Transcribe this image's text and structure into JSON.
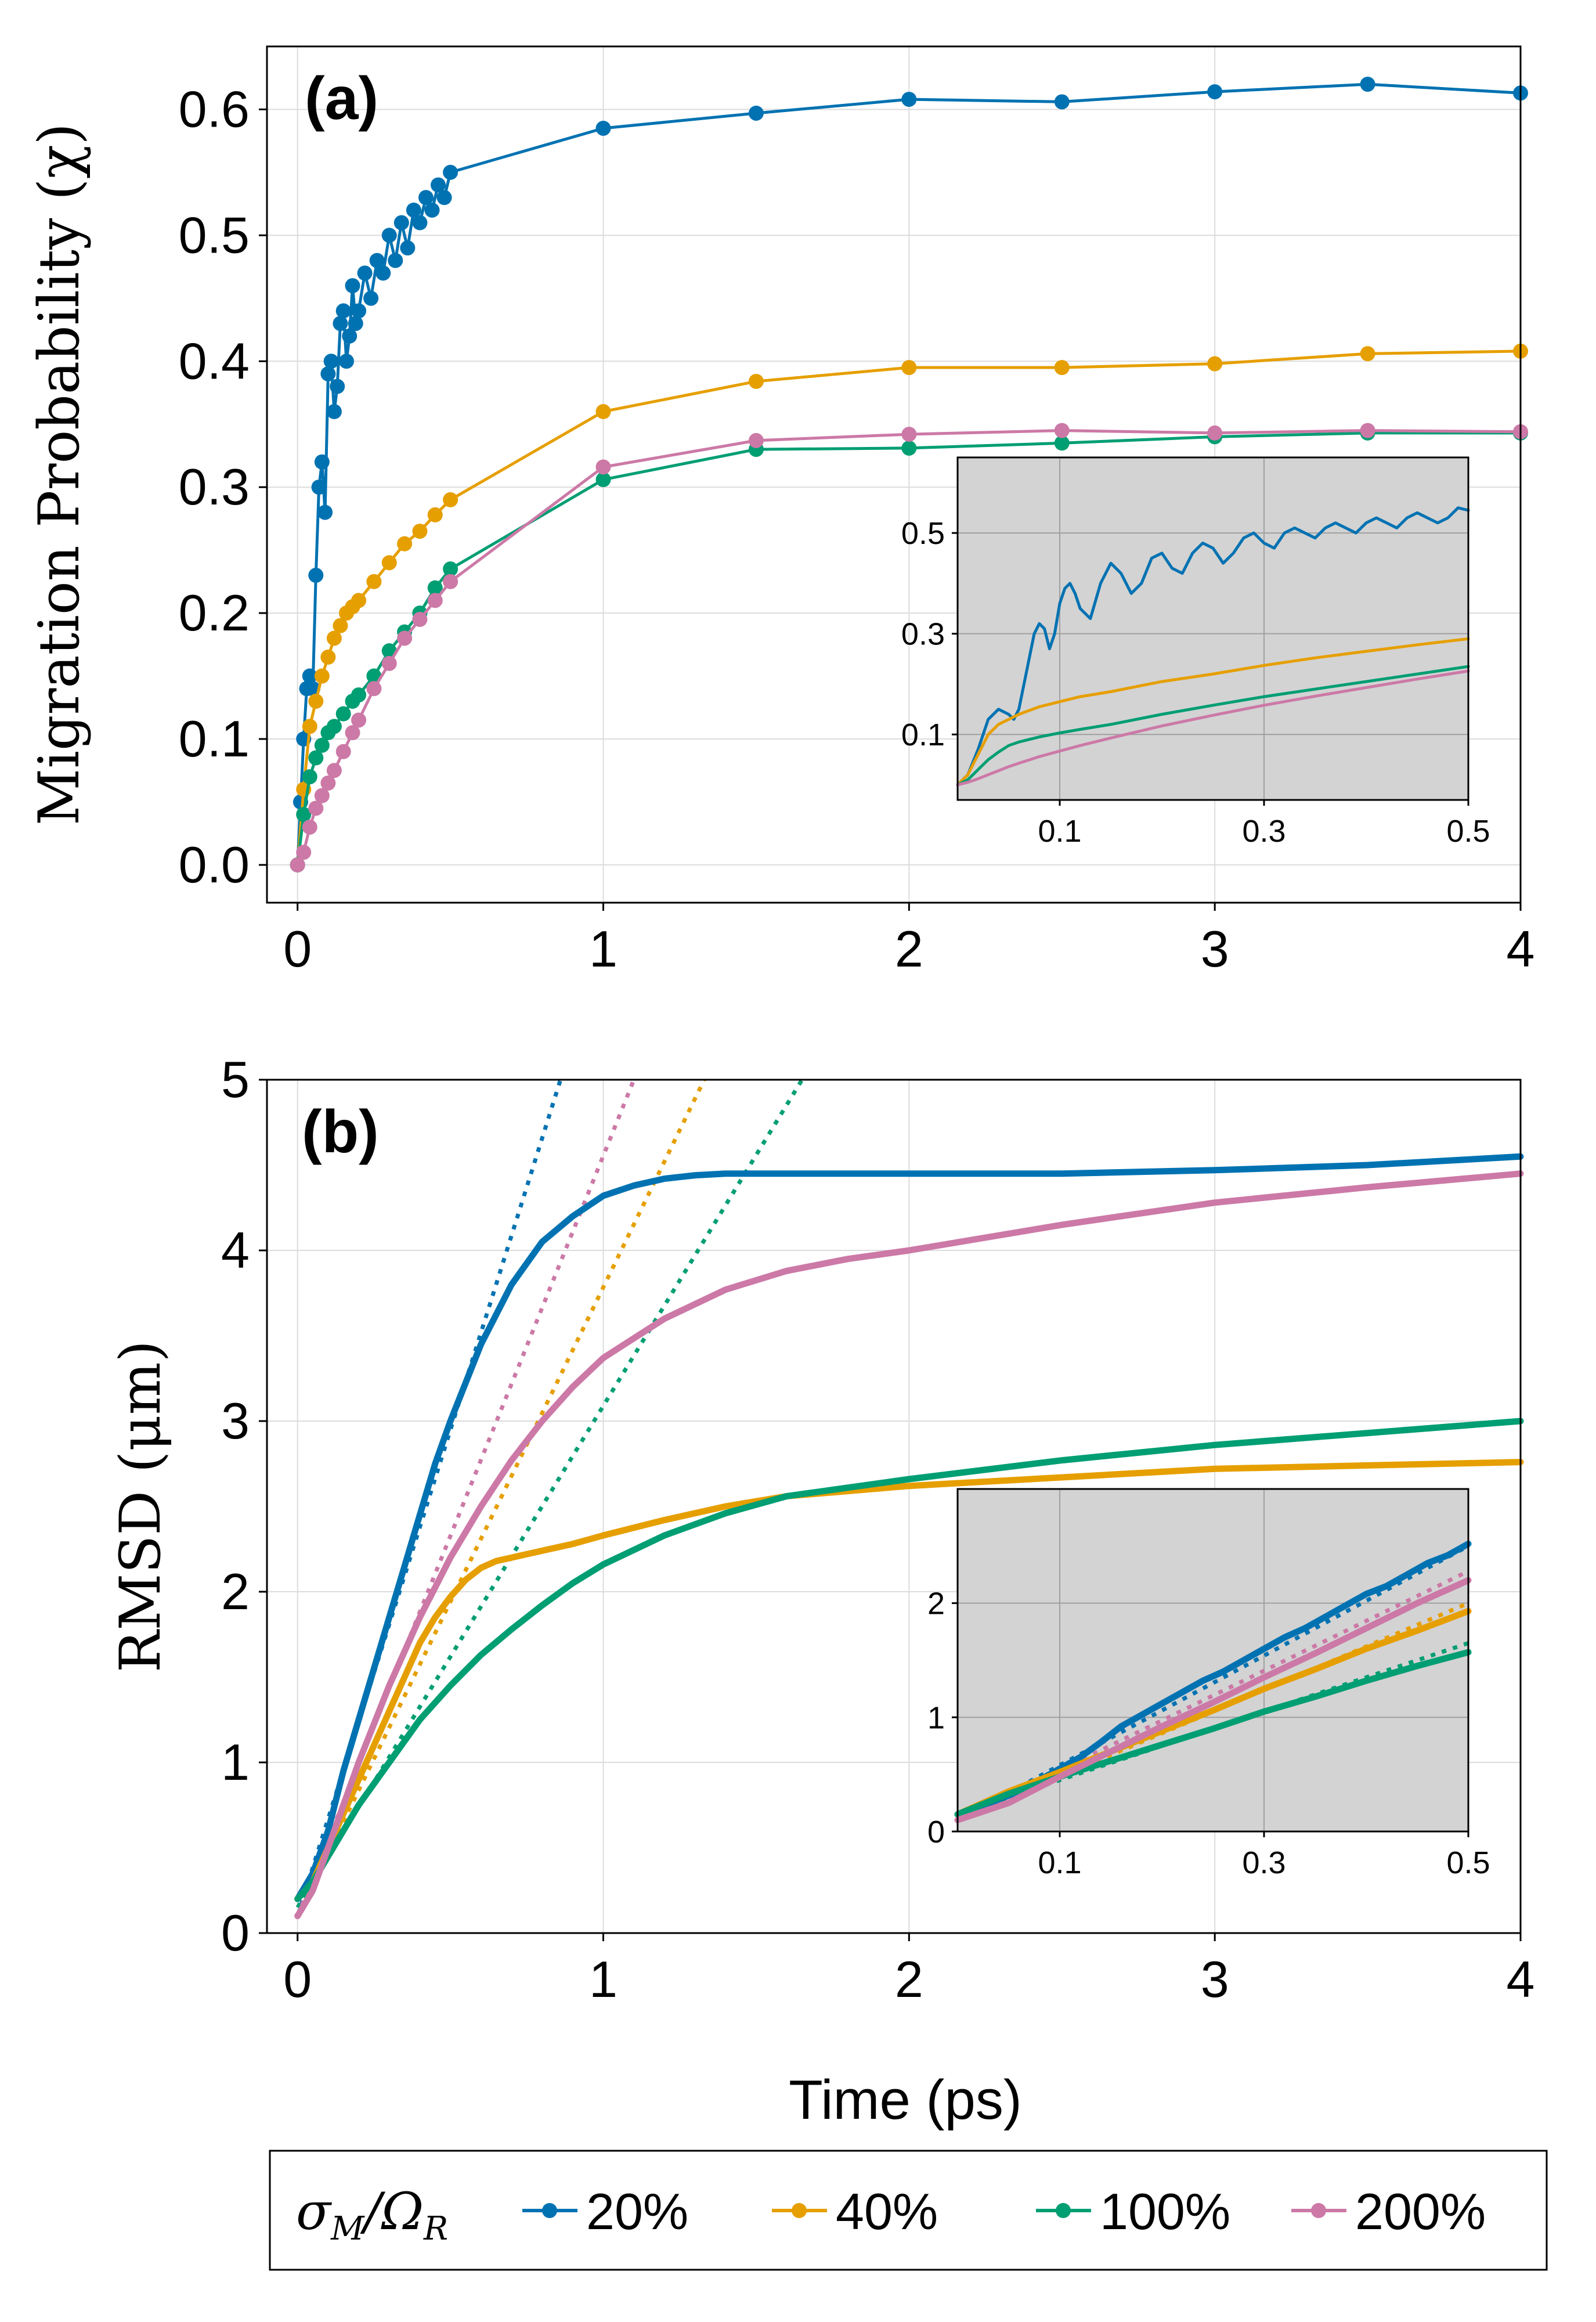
{
  "colors": {
    "s20": "#0072b2",
    "s40": "#e69f00",
    "s100": "#009e73",
    "s200": "#cc79a7",
    "inset_bg": "#d3d3d3",
    "grid": "#dcdcdc"
  },
  "legend": {
    "title": "σM/ΩR",
    "title_main": "σ",
    "title_sub1": "M",
    "title_mid": "/Ω",
    "title_sub2": "R",
    "items": [
      "20%",
      "40%",
      "100%",
      "200%"
    ]
  },
  "chart_data": [
    {
      "type": "line",
      "panel_label": "(a)",
      "ylabel": "Migration Probability (χ)",
      "xlabel": "",
      "xlim": [
        -0.1,
        4
      ],
      "ylim": [
        -0.03,
        0.65
      ],
      "xticks": [
        "0",
        "1",
        "2",
        "3",
        "4"
      ],
      "yticks": [
        "0.0",
        "0.1",
        "0.2",
        "0.3",
        "0.4",
        "0.5",
        "0.6"
      ],
      "grid": true,
      "markers": true,
      "series": [
        {
          "name": "20%",
          "x": [
            0,
            0.01,
            0.02,
            0.03,
            0.04,
            0.05,
            0.06,
            0.07,
            0.08,
            0.09,
            0.1,
            0.11,
            0.12,
            0.13,
            0.14,
            0.15,
            0.16,
            0.17,
            0.18,
            0.19,
            0.2,
            0.22,
            0.24,
            0.26,
            0.28,
            0.3,
            0.32,
            0.34,
            0.36,
            0.38,
            0.4,
            0.42,
            0.44,
            0.46,
            0.48,
            0.5,
            1,
            1.5,
            2,
            2.5,
            3,
            3.5,
            4
          ],
          "y": [
            0,
            0.05,
            0.1,
            0.14,
            0.15,
            0.14,
            0.23,
            0.3,
            0.32,
            0.28,
            0.39,
            0.4,
            0.36,
            0.38,
            0.43,
            0.44,
            0.4,
            0.42,
            0.46,
            0.43,
            0.44,
            0.47,
            0.45,
            0.48,
            0.47,
            0.5,
            0.48,
            0.51,
            0.49,
            0.52,
            0.51,
            0.53,
            0.52,
            0.54,
            0.53,
            0.55,
            0.585,
            0.597,
            0.608,
            0.606,
            0.614,
            0.62,
            0.613
          ]
        },
        {
          "name": "40%",
          "x": [
            0,
            0.02,
            0.04,
            0.06,
            0.08,
            0.1,
            0.12,
            0.14,
            0.16,
            0.18,
            0.2,
            0.25,
            0.3,
            0.35,
            0.4,
            0.45,
            0.5,
            1,
            1.5,
            2,
            2.5,
            3,
            3.5,
            4
          ],
          "y": [
            0,
            0.06,
            0.11,
            0.13,
            0.15,
            0.165,
            0.18,
            0.19,
            0.2,
            0.205,
            0.21,
            0.225,
            0.24,
            0.255,
            0.265,
            0.278,
            0.29,
            0.36,
            0.384,
            0.395,
            0.395,
            0.398,
            0.406,
            0.408
          ]
        },
        {
          "name": "100%",
          "x": [
            0,
            0.02,
            0.04,
            0.06,
            0.08,
            0.1,
            0.12,
            0.15,
            0.18,
            0.2,
            0.25,
            0.3,
            0.35,
            0.4,
            0.45,
            0.5,
            1,
            1.5,
            2,
            2.5,
            3,
            3.5,
            4
          ],
          "y": [
            0,
            0.04,
            0.07,
            0.085,
            0.095,
            0.105,
            0.11,
            0.12,
            0.13,
            0.135,
            0.15,
            0.17,
            0.185,
            0.2,
            0.22,
            0.235,
            0.306,
            0.33,
            0.331,
            0.335,
            0.34,
            0.343,
            0.343
          ]
        },
        {
          "name": "200%",
          "x": [
            0,
            0.02,
            0.04,
            0.06,
            0.08,
            0.1,
            0.12,
            0.15,
            0.18,
            0.2,
            0.25,
            0.3,
            0.35,
            0.4,
            0.45,
            0.5,
            1,
            1.5,
            2,
            2.5,
            3,
            3.5,
            4
          ],
          "y": [
            0,
            0.01,
            0.03,
            0.045,
            0.055,
            0.065,
            0.075,
            0.09,
            0.105,
            0.115,
            0.14,
            0.16,
            0.18,
            0.195,
            0.21,
            0.225,
            0.316,
            0.337,
            0.342,
            0.345,
            0.343,
            0.345,
            0.344
          ]
        }
      ],
      "inset": {
        "xlim": [
          0,
          0.5
        ],
        "ylim": [
          -0.03,
          0.65
        ],
        "xticks": [
          "0.1",
          "0.3",
          "0.5"
        ],
        "yticks": [
          "0.1",
          "0.3",
          "0.5"
        ],
        "markers": false,
        "series": [
          {
            "name": "20%",
            "x": [
              0,
              0.01,
              0.02,
              0.03,
              0.04,
              0.05,
              0.055,
              0.06,
              0.065,
              0.07,
              0.075,
              0.08,
              0.085,
              0.09,
              0.095,
              0.1,
              0.105,
              0.11,
              0.115,
              0.12,
              0.13,
              0.14,
              0.15,
              0.16,
              0.17,
              0.18,
              0.19,
              0.2,
              0.21,
              0.22,
              0.23,
              0.24,
              0.25,
              0.26,
              0.27,
              0.28,
              0.29,
              0.3,
              0.31,
              0.32,
              0.33,
              0.34,
              0.35,
              0.36,
              0.37,
              0.38,
              0.39,
              0.4,
              0.41,
              0.42,
              0.43,
              0.44,
              0.45,
              0.46,
              0.47,
              0.48,
              0.49,
              0.5
            ],
            "y": [
              0,
              0.02,
              0.07,
              0.13,
              0.15,
              0.14,
              0.13,
              0.15,
              0.2,
              0.25,
              0.3,
              0.32,
              0.31,
              0.27,
              0.3,
              0.36,
              0.39,
              0.4,
              0.38,
              0.35,
              0.33,
              0.4,
              0.44,
              0.42,
              0.38,
              0.4,
              0.45,
              0.46,
              0.43,
              0.42,
              0.46,
              0.48,
              0.47,
              0.44,
              0.46,
              0.49,
              0.5,
              0.48,
              0.47,
              0.5,
              0.51,
              0.5,
              0.49,
              0.51,
              0.52,
              0.51,
              0.5,
              0.52,
              0.53,
              0.52,
              0.51,
              0.53,
              0.54,
              0.53,
              0.52,
              0.53,
              0.55,
              0.545
            ]
          },
          {
            "name": "40%",
            "x": [
              0,
              0.01,
              0.02,
              0.03,
              0.04,
              0.05,
              0.06,
              0.08,
              0.1,
              0.12,
              0.15,
              0.2,
              0.25,
              0.3,
              0.35,
              0.4,
              0.45,
              0.5
            ],
            "y": [
              0,
              0.02,
              0.06,
              0.1,
              0.12,
              0.13,
              0.14,
              0.155,
              0.165,
              0.175,
              0.185,
              0.205,
              0.22,
              0.237,
              0.252,
              0.265,
              0.278,
              0.29
            ]
          },
          {
            "name": "100%",
            "x": [
              0,
              0.01,
              0.02,
              0.03,
              0.04,
              0.05,
              0.06,
              0.08,
              0.1,
              0.12,
              0.15,
              0.2,
              0.25,
              0.3,
              0.35,
              0.4,
              0.45,
              0.5
            ],
            "y": [
              0,
              0.01,
              0.03,
              0.05,
              0.065,
              0.078,
              0.085,
              0.095,
              0.103,
              0.11,
              0.12,
              0.14,
              0.158,
              0.175,
              0.19,
              0.205,
              0.22,
              0.235
            ]
          },
          {
            "name": "200%",
            "x": [
              0,
              0.01,
              0.02,
              0.03,
              0.04,
              0.05,
              0.06,
              0.08,
              0.1,
              0.12,
              0.15,
              0.2,
              0.25,
              0.3,
              0.35,
              0.4,
              0.45,
              0.5
            ],
            "y": [
              0,
              0.005,
              0.012,
              0.02,
              0.028,
              0.036,
              0.043,
              0.056,
              0.067,
              0.078,
              0.093,
              0.117,
              0.138,
              0.158,
              0.176,
              0.193,
              0.21,
              0.226
            ]
          }
        ]
      }
    },
    {
      "type": "line",
      "panel_label": "(b)",
      "ylabel": "RMSD (μm)",
      "xlabel": "Time (ps)",
      "xlim": [
        -0.1,
        4
      ],
      "ylim": [
        0,
        5
      ],
      "xticks": [
        "0",
        "1",
        "2",
        "3",
        "4"
      ],
      "yticks": [
        "0",
        "1",
        "2",
        "3",
        "4",
        "5"
      ],
      "grid": true,
      "markers": false,
      "series": [
        {
          "name": "20%",
          "x": [
            0,
            0.05,
            0.1,
            0.15,
            0.2,
            0.25,
            0.3,
            0.35,
            0.4,
            0.45,
            0.5,
            0.6,
            0.7,
            0.8,
            0.9,
            1,
            1.1,
            1.2,
            1.3,
            1.4,
            1.5,
            1.75,
            2,
            2.5,
            3,
            3.5,
            4
          ],
          "y": [
            0.2,
            0.35,
            0.6,
            0.95,
            1.25,
            1.55,
            1.85,
            2.15,
            2.45,
            2.75,
            3.0,
            3.45,
            3.8,
            4.05,
            4.2,
            4.32,
            4.38,
            4.42,
            4.44,
            4.45,
            4.45,
            4.45,
            4.45,
            4.45,
            4.47,
            4.5,
            4.55
          ]
        },
        {
          "name": "40%",
          "x": [
            0,
            0.05,
            0.1,
            0.15,
            0.2,
            0.25,
            0.3,
            0.35,
            0.4,
            0.45,
            0.5,
            0.55,
            0.6,
            0.65,
            0.7,
            0.8,
            0.9,
            1,
            1.2,
            1.4,
            1.6,
            2,
            2.5,
            3,
            3.5,
            4
          ],
          "y": [
            0.2,
            0.3,
            0.5,
            0.7,
            0.9,
            1.1,
            1.3,
            1.5,
            1.7,
            1.85,
            1.97,
            2.07,
            2.14,
            2.18,
            2.2,
            2.24,
            2.28,
            2.33,
            2.42,
            2.5,
            2.56,
            2.62,
            2.67,
            2.72,
            2.74,
            2.76
          ]
        },
        {
          "name": "100%",
          "x": [
            0,
            0.05,
            0.1,
            0.15,
            0.2,
            0.3,
            0.4,
            0.5,
            0.6,
            0.7,
            0.8,
            0.9,
            1,
            1.2,
            1.4,
            1.6,
            1.8,
            2,
            2.5,
            3,
            3.5,
            4
          ],
          "y": [
            0.2,
            0.3,
            0.45,
            0.6,
            0.75,
            1.0,
            1.25,
            1.45,
            1.63,
            1.78,
            1.92,
            2.05,
            2.16,
            2.33,
            2.46,
            2.56,
            2.61,
            2.66,
            2.77,
            2.86,
            2.93,
            3.0
          ]
        },
        {
          "name": "200%",
          "x": [
            0,
            0.05,
            0.1,
            0.15,
            0.2,
            0.3,
            0.4,
            0.5,
            0.6,
            0.7,
            0.8,
            0.9,
            1,
            1.2,
            1.4,
            1.6,
            1.8,
            2,
            2.5,
            3,
            3.5,
            4
          ],
          "y": [
            0.1,
            0.25,
            0.5,
            0.75,
            1.0,
            1.45,
            1.85,
            2.2,
            2.5,
            2.77,
            3.0,
            3.2,
            3.37,
            3.6,
            3.77,
            3.88,
            3.95,
            4.0,
            4.15,
            4.28,
            4.37,
            4.45
          ]
        }
      ],
      "fits": [
        {
          "name": "20%",
          "x": [
            0,
            0.86
          ],
          "y": [
            0.1,
            5.0
          ]
        },
        {
          "name": "40%",
          "x": [
            0,
            1.33
          ],
          "y": [
            0.1,
            5.0
          ]
        },
        {
          "name": "100%",
          "x": [
            0,
            1.65
          ],
          "y": [
            0.15,
            5.0
          ]
        },
        {
          "name": "200%",
          "x": [
            0,
            1.1
          ],
          "y": [
            0.1,
            5.0
          ]
        }
      ],
      "inset": {
        "xlim": [
          0,
          0.5
        ],
        "ylim": [
          0,
          3
        ],
        "xticks": [
          "0.1",
          "0.3",
          "0.5"
        ],
        "yticks": [
          "0",
          "1",
          "2"
        ],
        "series": [
          {
            "name": "20%",
            "x": [
              0,
              0.02,
              0.04,
              0.06,
              0.08,
              0.1,
              0.12,
              0.14,
              0.16,
              0.18,
              0.2,
              0.22,
              0.24,
              0.26,
              0.28,
              0.3,
              0.32,
              0.34,
              0.36,
              0.38,
              0.4,
              0.42,
              0.44,
              0.46,
              0.48,
              0.5
            ],
            "y": [
              0.15,
              0.2,
              0.28,
              0.35,
              0.45,
              0.55,
              0.65,
              0.78,
              0.92,
              1.02,
              1.12,
              1.22,
              1.32,
              1.4,
              1.5,
              1.6,
              1.7,
              1.78,
              1.88,
              1.98,
              2.08,
              2.15,
              2.25,
              2.35,
              2.42,
              2.52
            ]
          },
          {
            "name": "40%",
            "x": [
              0,
              0.05,
              0.1,
              0.15,
              0.2,
              0.25,
              0.3,
              0.35,
              0.4,
              0.45,
              0.5
            ],
            "y": [
              0.15,
              0.35,
              0.52,
              0.7,
              0.88,
              1.06,
              1.25,
              1.42,
              1.6,
              1.76,
              1.93
            ]
          },
          {
            "name": "100%",
            "x": [
              0,
              0.05,
              0.1,
              0.15,
              0.2,
              0.25,
              0.3,
              0.35,
              0.4,
              0.45,
              0.5
            ],
            "y": [
              0.15,
              0.33,
              0.48,
              0.62,
              0.76,
              0.9,
              1.05,
              1.18,
              1.32,
              1.45,
              1.57
            ]
          },
          {
            "name": "200%",
            "x": [
              0,
              0.05,
              0.1,
              0.15,
              0.2,
              0.25,
              0.3,
              0.35,
              0.4,
              0.45,
              0.5
            ],
            "y": [
              0.1,
              0.25,
              0.48,
              0.7,
              0.92,
              1.13,
              1.35,
              1.56,
              1.78,
              2.0,
              2.2
            ]
          }
        ],
        "fits": [
          {
            "name": "20%",
            "x": [
              0,
              0.5
            ],
            "y": [
              0.1,
              2.5
            ]
          },
          {
            "name": "40%",
            "x": [
              0,
              0.5
            ],
            "y": [
              0.1,
              2.0
            ]
          },
          {
            "name": "100%",
            "x": [
              0,
              0.5
            ],
            "y": [
              0.15,
              1.65
            ]
          },
          {
            "name": "200%",
            "x": [
              0,
              0.5
            ],
            "y": [
              0.1,
              2.28
            ]
          }
        ]
      }
    }
  ]
}
